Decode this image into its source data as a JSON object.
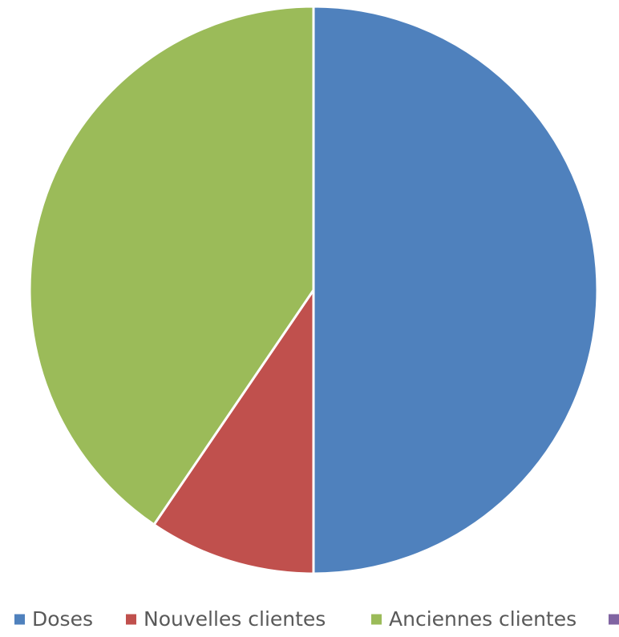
{
  "chart_data": {
    "type": "pie",
    "title": "",
    "legend_position": "bottom",
    "slices": [
      {
        "label": "Doses",
        "value": 50,
        "color": "#4F81BD"
      },
      {
        "label": "Nouvelles clientes",
        "value": 9.5,
        "color": "#C0504D"
      },
      {
        "label": "Anciennes clientes",
        "value": 40.5,
        "color": "#9BBB59"
      },
      {
        "label": "",
        "value": 0,
        "color": "#8064A2"
      }
    ]
  }
}
